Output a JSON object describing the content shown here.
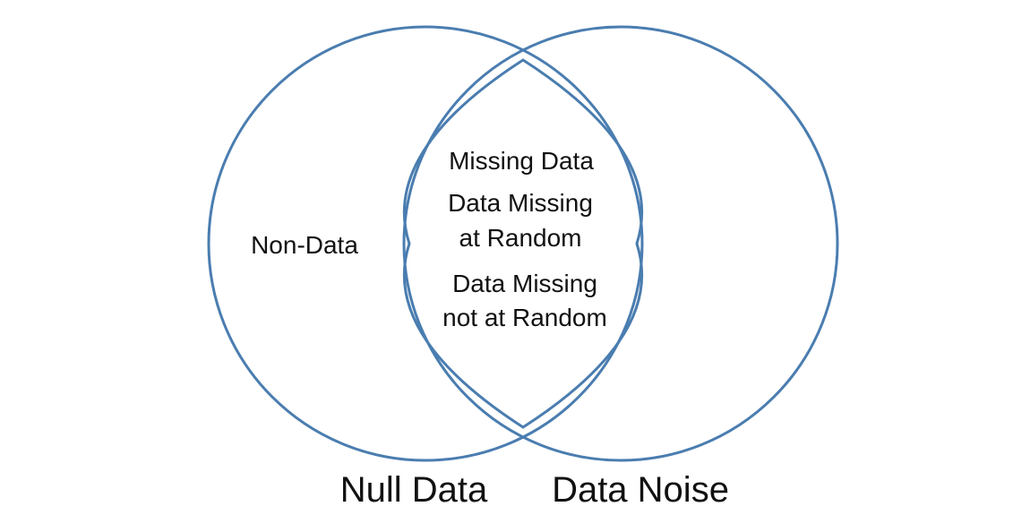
{
  "diagram": {
    "type": "venn",
    "stroke_color": "#4a7db0",
    "sets": {
      "left": "Null Data",
      "right": "Data Noise"
    },
    "regions": {
      "left_only": "Non-Data",
      "intersection_title": "Missing Data",
      "intersection_item_1_line_1": "Data Missing",
      "intersection_item_1_line_2": "at Random",
      "intersection_item_2_line_1": "Data Missing",
      "intersection_item_2_line_2": "not at Random"
    }
  }
}
